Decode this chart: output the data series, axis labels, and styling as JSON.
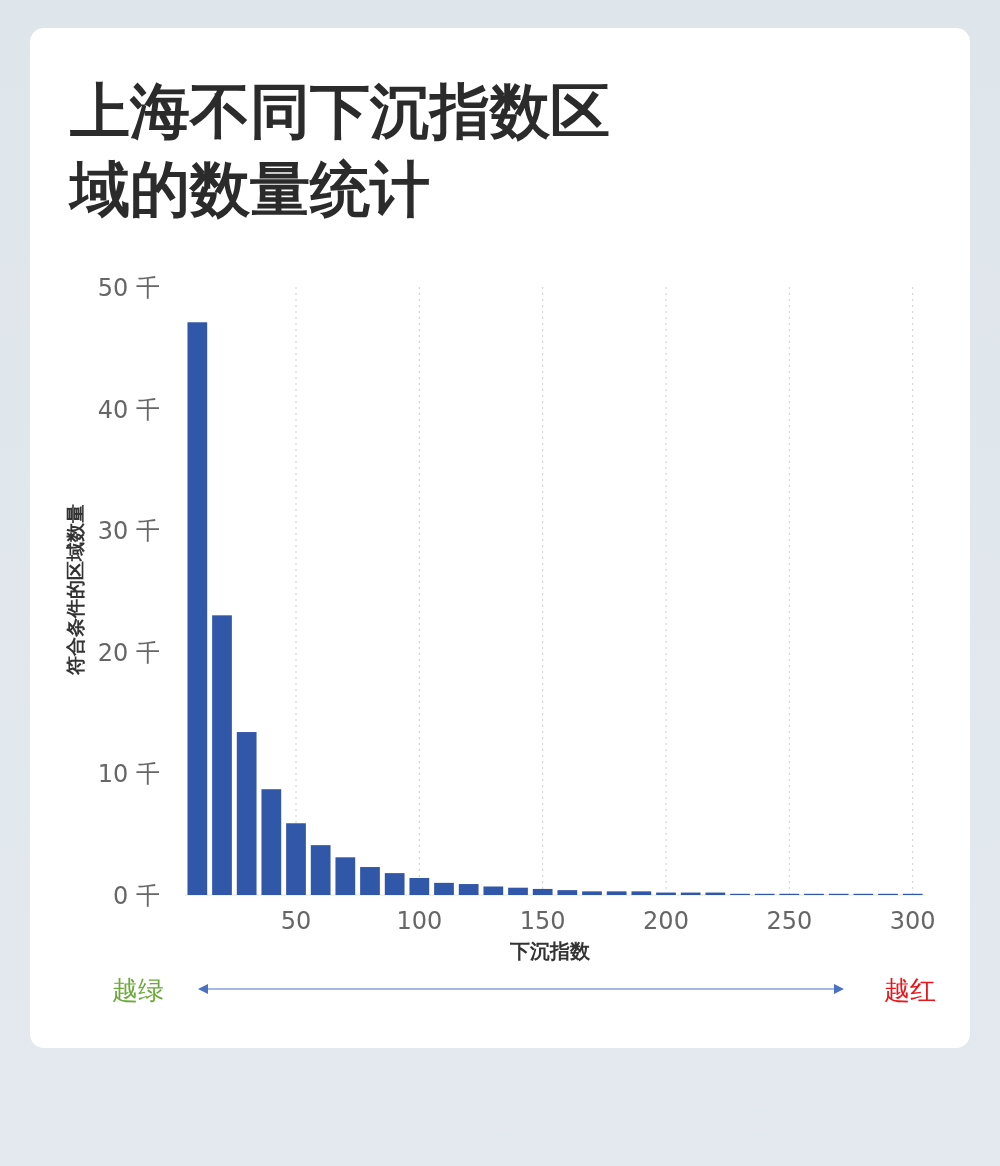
{
  "chart_data": {
    "type": "bar",
    "title": "上海不同下沉指数区域的数量统计",
    "xlabel": "下沉指数",
    "ylabel": "符合条件的区域数量",
    "x": [
      10,
      20,
      30,
      40,
      50,
      60,
      70,
      80,
      90,
      100,
      110,
      120,
      130,
      140,
      150,
      160,
      170,
      180,
      190,
      200,
      210,
      220,
      230,
      240,
      250,
      260,
      270,
      280,
      290,
      300
    ],
    "values": [
      47.1,
      23.0,
      13.4,
      8.7,
      5.9,
      4.1,
      3.1,
      2.3,
      1.8,
      1.4,
      1.0,
      0.9,
      0.7,
      0.6,
      0.5,
      0.4,
      0.3,
      0.3,
      0.3,
      0.2,
      0.2,
      0.2,
      0.1,
      0.1,
      0.1,
      0.1,
      0.1,
      0.1,
      0.1,
      0.1
    ],
    "color": "#3157a8",
    "xlim": [
      5,
      305
    ],
    "xticks": [
      50,
      100,
      150,
      200,
      250,
      300
    ],
    "ylim": [
      0,
      50
    ],
    "yticks": [
      {
        "value": 0,
        "label": "0 千"
      },
      {
        "value": 10,
        "label": "10 千"
      },
      {
        "value": 20,
        "label": "20 千"
      },
      {
        "value": 30,
        "label": "30 千"
      },
      {
        "value": 40,
        "label": "40 千"
      },
      {
        "value": 50,
        "label": "50 千"
      }
    ],
    "grid": "x",
    "annotations": [
      "越绿",
      "越红"
    ]
  }
}
